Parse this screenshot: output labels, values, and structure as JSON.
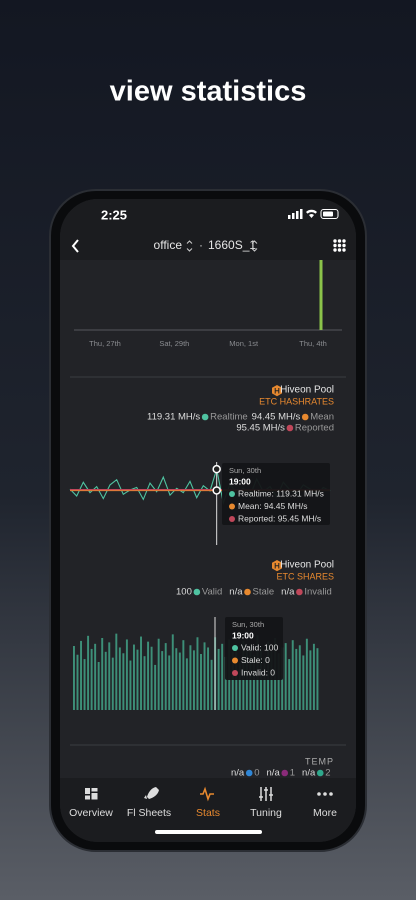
{
  "promo_title": "view statistics",
  "status_time": "2:25",
  "header": {
    "farm": "office",
    "separator": "·",
    "worker": "1660S_1"
  },
  "hashrate_section": {
    "pool": "Hiveon Pool",
    "title": "ETC HASHRATES",
    "legend": [
      {
        "value": "119.31 MH/s",
        "name": "Realtime"
      },
      {
        "value": "94.45 MH/s",
        "name": "Mean"
      },
      {
        "value": "95.45 MH/s",
        "name": "Reported"
      }
    ],
    "tooltip": {
      "date": "Sun, 30th",
      "time": "19:00",
      "lines": [
        "Realtime: 119.31 MH/s",
        "Mean: 94.45 MH/s",
        "Reported: 95.45 MH/s"
      ]
    }
  },
  "shares_section": {
    "pool": "Hiveon Pool",
    "title": "ETC SHARES",
    "legend": [
      {
        "value": "100",
        "name": "Valid"
      },
      {
        "value": "n/a",
        "name": "Stale"
      },
      {
        "value": "n/a",
        "name": "Invalid"
      }
    ],
    "tooltip": {
      "date": "Sun, 30th",
      "time": "19:00",
      "lines": [
        "Valid: 100",
        "Stale: 0",
        "Invalid: 0"
      ]
    }
  },
  "temp_section": {
    "title": "TEMP",
    "legend": [
      {
        "value": "n/a",
        "name": "0"
      },
      {
        "value": "n/a",
        "name": "1"
      },
      {
        "value": "n/a",
        "name": "2"
      }
    ]
  },
  "tabs": [
    "Overview",
    "Fl Sheets",
    "Stats",
    "Tuning",
    "More"
  ],
  "chart_data": [
    {
      "type": "bar",
      "categories": [
        "Thu, 27th",
        "Sat, 29th",
        "Mon, 1st",
        "Thu, 4th"
      ],
      "values": [
        0,
        0,
        0,
        70
      ],
      "color": "#8bc34a",
      "ylim": [
        0,
        70
      ]
    },
    {
      "type": "line",
      "ylim": [
        60,
        130
      ],
      "series": [
        {
          "name": "Realtime",
          "color": "#4fc3a1",
          "values": [
            96,
            88,
            104,
            92,
            99,
            85,
            101,
            107,
            90,
            95,
            98,
            84,
            103,
            93,
            110,
            89,
            97,
            92,
            105,
            86,
            100,
            94,
            119.31,
            80,
            102,
            91,
            97,
            88,
            108,
            93,
            99,
            87,
            104,
            95,
            90,
            101,
            96,
            89,
            98,
            94
          ]
        },
        {
          "name": "Mean",
          "color": "#e8892f",
          "values": [
            94.45
          ]
        },
        {
          "name": "Reported",
          "color": "#c0475a",
          "values": [
            95.45
          ]
        }
      ]
    },
    {
      "type": "bar",
      "color": "#3d8f78",
      "ylim": [
        0,
        110
      ],
      "values": [
        88,
        76,
        95,
        70,
        102,
        84,
        91,
        66,
        99,
        80,
        93,
        72,
        105,
        86,
        78,
        97,
        68,
        90,
        83,
        101,
        74,
        94,
        87,
        62,
        98,
        81,
        92,
        75,
        104,
        85,
        79,
        96,
        71,
        89,
        82,
        100,
        77,
        93,
        86,
        69,
        100,
        84,
        91,
        73,
        97,
        80,
        88,
        65,
        95,
        83,
        90,
        76,
        103,
        87,
        72,
        94,
        81,
        99,
        78,
        86,
        92,
        70,
        96,
        84,
        89,
        75,
        98,
        82,
        91,
        85
      ]
    }
  ]
}
